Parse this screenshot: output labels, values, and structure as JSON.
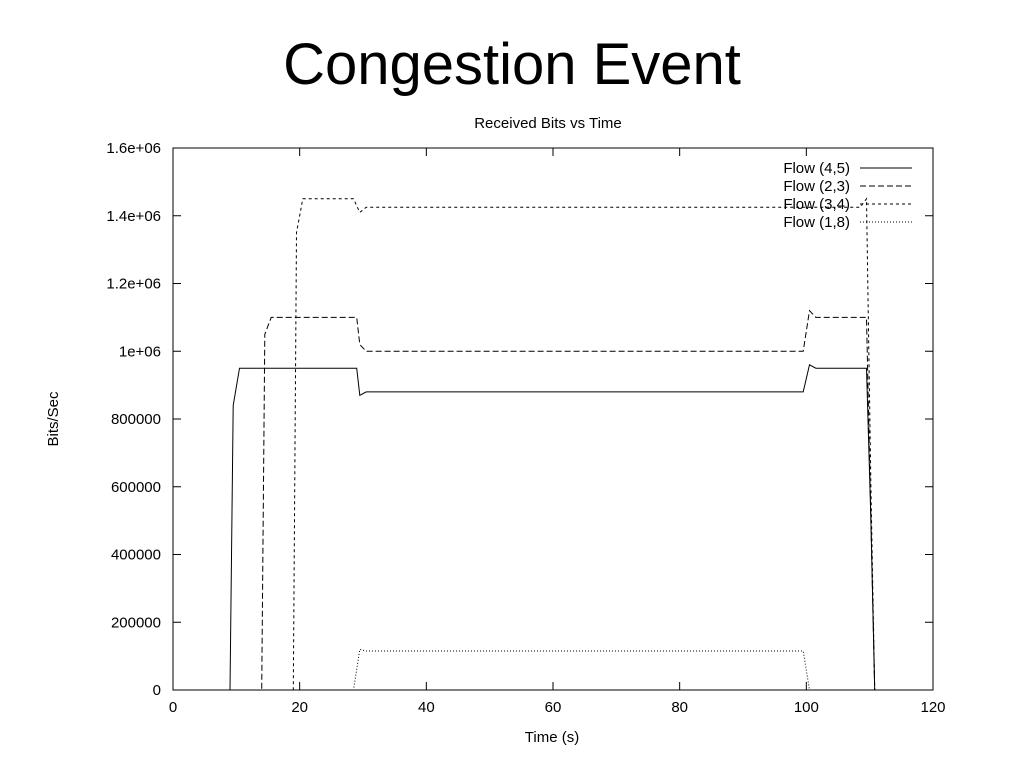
{
  "slide": {
    "title": "Congestion Event"
  },
  "chart_data": {
    "type": "line",
    "title": "Received Bits vs Time",
    "xlabel": "Time (s)",
    "ylabel": "Bits/Sec",
    "xlim": [
      0,
      120
    ],
    "ylim": [
      0,
      1600000
    ],
    "xticks": [
      0,
      20,
      40,
      60,
      80,
      100,
      120
    ],
    "yticks": [
      0,
      200000,
      400000,
      600000,
      800000,
      1000000,
      1200000,
      1400000,
      1600000
    ],
    "xtick_labels": [
      "0",
      "20",
      "40",
      "60",
      "80",
      "100",
      "120"
    ],
    "ytick_labels": [
      "0",
      "200000",
      "400000",
      "600000",
      "800000",
      "1e+06",
      "1.2e+06",
      "1.4e+06",
      "1.6e+06"
    ],
    "grid": false,
    "legend": "top-right",
    "series": [
      {
        "name": "Flow (4,5)",
        "style": "solid",
        "x": [
          0,
          9,
          9.5,
          10.5,
          29,
          29.5,
          30.5,
          99.5,
          100.5,
          101.5,
          109.5,
          110.2,
          110.8,
          120
        ],
        "y": [
          0,
          0,
          840000,
          950000,
          950000,
          870000,
          880000,
          880000,
          960000,
          950000,
          950000,
          500000,
          0,
          0
        ]
      },
      {
        "name": "Flow (2,3)",
        "style": "dashed",
        "x": [
          0,
          14,
          14.5,
          15.5,
          29,
          29.5,
          30.5,
          99.5,
          100.5,
          101.5,
          109.5,
          110.2,
          110.8,
          120
        ],
        "y": [
          0,
          0,
          1050000,
          1100000,
          1100000,
          1020000,
          1000000,
          1000000,
          1120000,
          1100000,
          1100000,
          500000,
          0,
          0
        ]
      },
      {
        "name": "Flow (3,4)",
        "style": "short-dash",
        "x": [
          0,
          19,
          19.5,
          20.5,
          28.5,
          29.5,
          30.5,
          108.5,
          109.5,
          110.2,
          110.8,
          120
        ],
        "y": [
          0,
          0,
          1350000,
          1450000,
          1450000,
          1410000,
          1425000,
          1425000,
          1450000,
          600000,
          0,
          0
        ]
      },
      {
        "name": "Flow (1,8)",
        "style": "dotted",
        "x": [
          0,
          28.5,
          29.5,
          30.5,
          99,
          99.5,
          100.5,
          120
        ],
        "y": [
          0,
          0,
          120000,
          115000,
          115000,
          115000,
          0,
          0
        ]
      }
    ]
  }
}
